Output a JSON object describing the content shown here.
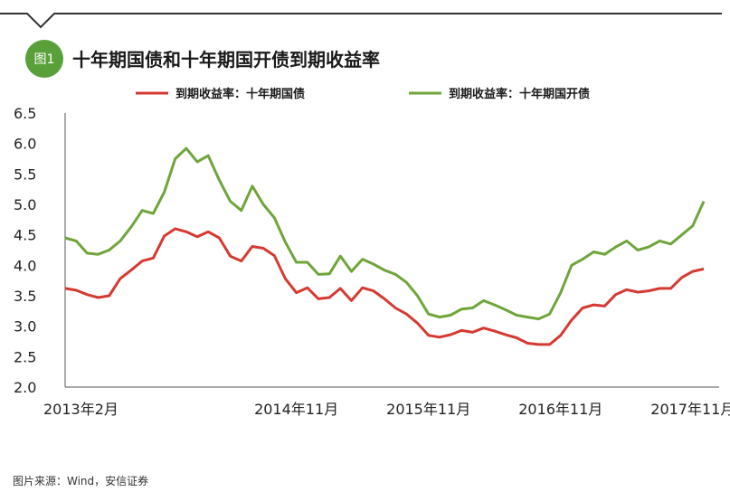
{
  "badge": "图1",
  "source": "图片来源：Wind，安信证券",
  "colors": {
    "badge": "#5aa03a",
    "frame": "#333333"
  },
  "chart_data": {
    "type": "line",
    "title": "十年期国债和十年期国开债到期收益率",
    "xlabel": "",
    "ylabel": "",
    "ylim": [
      2.0,
      6.5
    ],
    "yticks": [
      "6.5",
      "6.0",
      "5.5",
      "5.0",
      "4.5",
      "4.0",
      "3.5",
      "3.0",
      "2.5",
      "2.0"
    ],
    "xlim": [
      "2013-02",
      "2017-12"
    ],
    "xticks": [
      {
        "label": "2013年2月",
        "x": "2013-02"
      },
      {
        "label": "2014年11月",
        "x": "2014-11"
      },
      {
        "label": "2015年11月",
        "x": "2015-11"
      },
      {
        "label": "2016年11月",
        "x": "2016-11"
      },
      {
        "label": "2017年11月",
        "x": "2017-11"
      }
    ],
    "legend_position": "top",
    "grid": false,
    "series": [
      {
        "name": "到期收益率：十年期国债",
        "color": "#d43a32",
        "points": [
          [
            "2013-02",
            3.62
          ],
          [
            "2013-03",
            3.59
          ],
          [
            "2013-04",
            3.52
          ],
          [
            "2013-05",
            3.47
          ],
          [
            "2013-06",
            3.5
          ],
          [
            "2013-07",
            3.78
          ],
          [
            "2013-08",
            3.92
          ],
          [
            "2013-09",
            4.07
          ],
          [
            "2013-10",
            4.12
          ],
          [
            "2013-11",
            4.48
          ],
          [
            "2013-12",
            4.6
          ],
          [
            "2014-01",
            4.55
          ],
          [
            "2014-02",
            4.47
          ],
          [
            "2014-03",
            4.55
          ],
          [
            "2014-04",
            4.45
          ],
          [
            "2014-05",
            4.15
          ],
          [
            "2014-06",
            4.07
          ],
          [
            "2014-07",
            4.31
          ],
          [
            "2014-08",
            4.28
          ],
          [
            "2014-09",
            4.16
          ],
          [
            "2014-10",
            3.78
          ],
          [
            "2014-11",
            3.55
          ],
          [
            "2014-12",
            3.63
          ],
          [
            "2015-01",
            3.45
          ],
          [
            "2015-02",
            3.47
          ],
          [
            "2015-03",
            3.62
          ],
          [
            "2015-04",
            3.42
          ],
          [
            "2015-05",
            3.63
          ],
          [
            "2015-06",
            3.58
          ],
          [
            "2015-07",
            3.45
          ],
          [
            "2015-08",
            3.3
          ],
          [
            "2015-09",
            3.2
          ],
          [
            "2015-10",
            3.05
          ],
          [
            "2015-11",
            2.85
          ],
          [
            "2015-12",
            2.82
          ],
          [
            "2016-01",
            2.86
          ],
          [
            "2016-02",
            2.93
          ],
          [
            "2016-03",
            2.9
          ],
          [
            "2016-04",
            2.97
          ],
          [
            "2016-05",
            2.92
          ],
          [
            "2016-06",
            2.86
          ],
          [
            "2016-07",
            2.81
          ],
          [
            "2016-08",
            2.72
          ],
          [
            "2016-09",
            2.7
          ],
          [
            "2016-10",
            2.7
          ],
          [
            "2016-11",
            2.85
          ],
          [
            "2016-12",
            3.1
          ],
          [
            "2017-01",
            3.3
          ],
          [
            "2017-02",
            3.35
          ],
          [
            "2017-03",
            3.33
          ],
          [
            "2017-04",
            3.52
          ],
          [
            "2017-05",
            3.6
          ],
          [
            "2017-06",
            3.56
          ],
          [
            "2017-07",
            3.58
          ],
          [
            "2017-08",
            3.62
          ],
          [
            "2017-09",
            3.62
          ],
          [
            "2017-10",
            3.8
          ],
          [
            "2017-11",
            3.9
          ],
          [
            "2017-12",
            3.94
          ]
        ]
      },
      {
        "name": "到期收益率：十年期国开债",
        "color": "#6fa53a",
        "points": [
          [
            "2013-02",
            4.45
          ],
          [
            "2013-03",
            4.4
          ],
          [
            "2013-04",
            4.2
          ],
          [
            "2013-05",
            4.18
          ],
          [
            "2013-06",
            4.25
          ],
          [
            "2013-07",
            4.4
          ],
          [
            "2013-08",
            4.63
          ],
          [
            "2013-09",
            4.9
          ],
          [
            "2013-10",
            4.85
          ],
          [
            "2013-11",
            5.2
          ],
          [
            "2013-12",
            5.75
          ],
          [
            "2014-01",
            5.92
          ],
          [
            "2014-02",
            5.7
          ],
          [
            "2014-03",
            5.8
          ],
          [
            "2014-04",
            5.4
          ],
          [
            "2014-05",
            5.05
          ],
          [
            "2014-06",
            4.9
          ],
          [
            "2014-07",
            5.3
          ],
          [
            "2014-08",
            5.0
          ],
          [
            "2014-09",
            4.78
          ],
          [
            "2014-10",
            4.38
          ],
          [
            "2014-11",
            4.05
          ],
          [
            "2014-12",
            4.05
          ],
          [
            "2015-01",
            3.85
          ],
          [
            "2015-02",
            3.86
          ],
          [
            "2015-03",
            4.15
          ],
          [
            "2015-04",
            3.9
          ],
          [
            "2015-05",
            4.1
          ],
          [
            "2015-06",
            4.02
          ],
          [
            "2015-07",
            3.92
          ],
          [
            "2015-08",
            3.85
          ],
          [
            "2015-09",
            3.72
          ],
          [
            "2015-10",
            3.5
          ],
          [
            "2015-11",
            3.2
          ],
          [
            "2015-12",
            3.15
          ],
          [
            "2016-01",
            3.18
          ],
          [
            "2016-02",
            3.28
          ],
          [
            "2016-03",
            3.3
          ],
          [
            "2016-04",
            3.42
          ],
          [
            "2016-05",
            3.35
          ],
          [
            "2016-06",
            3.27
          ],
          [
            "2016-07",
            3.18
          ],
          [
            "2016-08",
            3.15
          ],
          [
            "2016-09",
            3.12
          ],
          [
            "2016-10",
            3.2
          ],
          [
            "2016-11",
            3.55
          ],
          [
            "2016-12",
            4.0
          ],
          [
            "2017-01",
            4.1
          ],
          [
            "2017-02",
            4.22
          ],
          [
            "2017-03",
            4.18
          ],
          [
            "2017-04",
            4.3
          ],
          [
            "2017-05",
            4.4
          ],
          [
            "2017-06",
            4.25
          ],
          [
            "2017-07",
            4.3
          ],
          [
            "2017-08",
            4.4
          ],
          [
            "2017-09",
            4.35
          ],
          [
            "2017-10",
            4.5
          ],
          [
            "2017-11",
            4.65
          ],
          [
            "2017-12",
            5.05
          ]
        ]
      }
    ]
  }
}
